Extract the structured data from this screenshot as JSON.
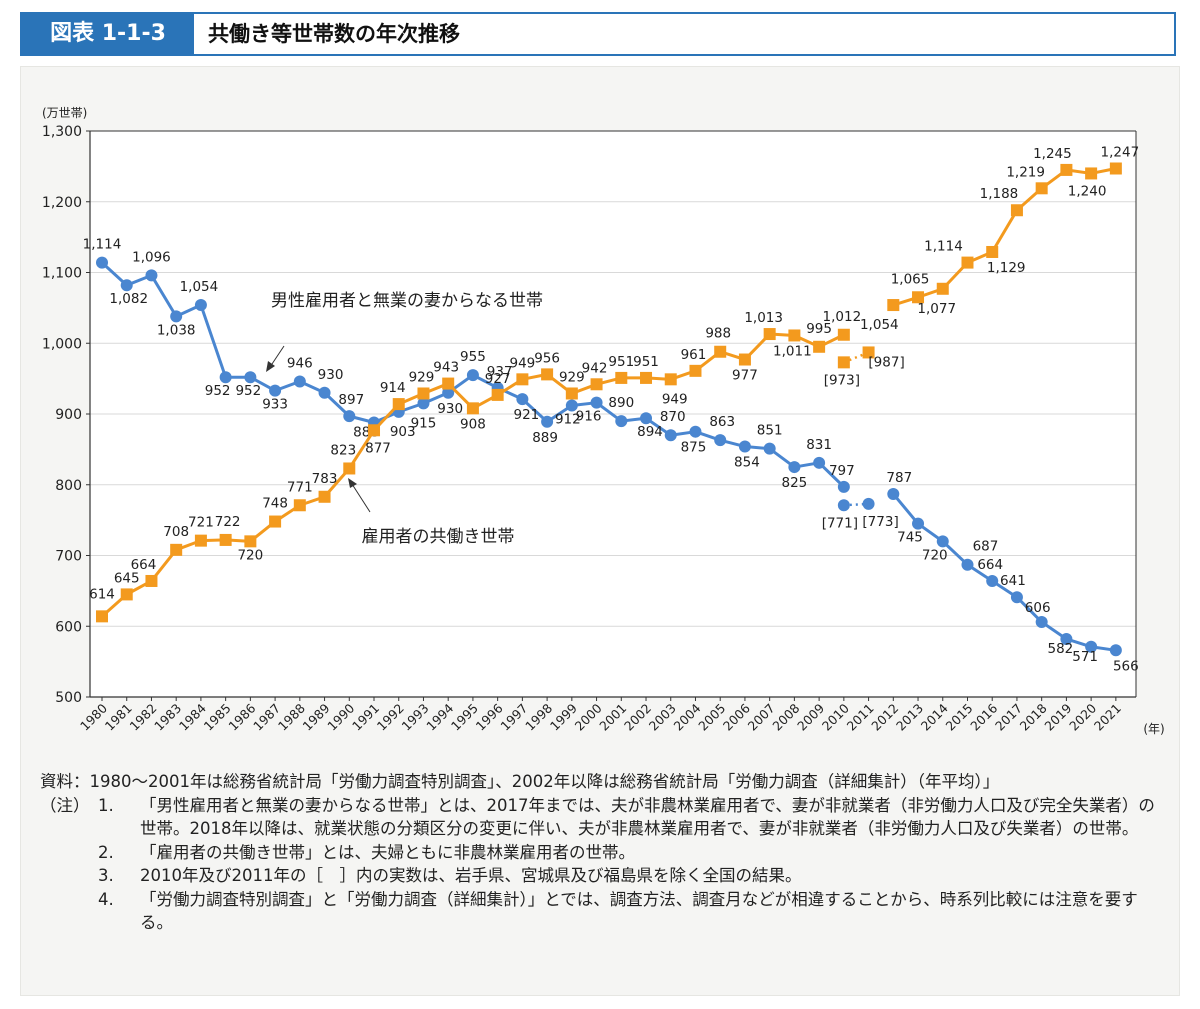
{
  "header": {
    "figure_label": "図表 1-1-3",
    "title": "共働き等世帯数の年次推移"
  },
  "chart_data": {
    "type": "line",
    "ylabel": "(万世帯)",
    "xlabel": "(年)",
    "ylim": [
      500,
      1300
    ],
    "yticks": [
      500,
      600,
      700,
      800,
      900,
      1000,
      1100,
      1200,
      1300
    ],
    "ytick_labels": [
      "500",
      "600",
      "700",
      "800",
      "900",
      "1,000",
      "1,100",
      "1,200",
      "1,300"
    ],
    "x": [
      1980,
      1981,
      1982,
      1983,
      1984,
      1985,
      1986,
      1987,
      1988,
      1989,
      1990,
      1991,
      1992,
      1993,
      1994,
      1995,
      1996,
      1997,
      1998,
      1999,
      2000,
      2001,
      2002,
      2003,
      2004,
      2005,
      2006,
      2007,
      2008,
      2009,
      2010,
      2011,
      2012,
      2013,
      2014,
      2015,
      2016,
      2017,
      2018,
      2019,
      2020,
      2021
    ],
    "series": [
      {
        "name": "男性雇用者と無業の妻からなる世帯",
        "color": "#4a86d0",
        "marker": "circle",
        "values": [
          1114,
          1082,
          1096,
          1038,
          1054,
          952,
          952,
          933,
          946,
          930,
          897,
          888,
          903,
          915,
          930,
          955,
          937,
          921,
          889,
          912,
          916,
          890,
          894,
          870,
          875,
          863,
          854,
          851,
          825,
          831,
          797,
          null,
          787,
          745,
          720,
          687,
          664,
          641,
          606,
          582,
          571,
          566
        ],
        "value_labels": [
          "1,114",
          "1,082",
          "1,096",
          "1,038",
          "1,054",
          "952",
          "952",
          "933",
          "946",
          "930",
          "897",
          "888",
          "903",
          "915",
          "930",
          "955",
          "937",
          "921",
          "889",
          "912",
          "916",
          "890",
          "894",
          "870",
          "875",
          "863",
          "854",
          "851",
          "825",
          "831",
          "797",
          "",
          "787",
          "745",
          "720",
          "687",
          "664",
          "641",
          "606",
          "582",
          "571",
          "566"
        ],
        "bracket_points": [
          {
            "x": 2010,
            "value": 771,
            "label": "[771]"
          },
          {
            "x": 2011,
            "value": 773,
            "label": "[773]"
          }
        ]
      },
      {
        "name": "雇用者の共働き世帯",
        "color": "#f39a1e",
        "marker": "square",
        "values": [
          614,
          645,
          664,
          708,
          721,
          722,
          720,
          748,
          771,
          783,
          823,
          877,
          914,
          929,
          943,
          908,
          927,
          949,
          956,
          929,
          942,
          951,
          951,
          949,
          961,
          988,
          977,
          1013,
          1011,
          995,
          1012,
          null,
          1054,
          1065,
          1077,
          1114,
          1129,
          1188,
          1219,
          1245,
          1240,
          1247
        ],
        "value_labels": [
          "614",
          "645",
          "664",
          "708",
          "721",
          "722",
          "720",
          "748",
          "771",
          "783",
          "823",
          "877",
          "914",
          "929",
          "943",
          "908",
          "927",
          "949",
          "956",
          "929",
          "942",
          "951",
          "951",
          "949",
          "961",
          "988",
          "977",
          "1,013",
          "1,011",
          "995",
          "1,012",
          "",
          "1,054",
          "1,065",
          "1,077",
          "1,114",
          "1,129",
          "1,188",
          "1,219",
          "1,245",
          "1,240",
          "1,247"
        ],
        "bracket_points": [
          {
            "x": 2010,
            "value": 973,
            "label": "[973]"
          },
          {
            "x": 2011,
            "value": 987,
            "label": "[987]"
          }
        ]
      }
    ]
  },
  "notes": {
    "source_tag": "資料：",
    "source_text": "1980〜2001年は総務省統計局「労働力調査特別調査」、2002年以降は総務省統計局「労働力調査（詳細集計）（年平均）」",
    "notes_tag": "（注）",
    "items": [
      {
        "num": "1.",
        "text": "「男性雇用者と無業の妻からなる世帯」とは、2017年までは、夫が非農林業雇用者で、妻が非就業者（非労働力人口及び完全失業者）の世帯。2018年以降は、就業状態の分類区分の変更に伴い、夫が非農林業雇用者で、妻が非就業者（非労働力人口及び失業者）の世帯。"
      },
      {
        "num": "2.",
        "text": "「雇用者の共働き世帯」とは、夫婦ともに非農林業雇用者の世帯。"
      },
      {
        "num": "3.",
        "text": "2010年及び2011年の［　］内の実数は、岩手県、宮城県及び福島県を除く全国の結果。"
      },
      {
        "num": "4.",
        "text": "「労働力調査特別調査」と「労働力調査（詳細集計）」とでは、調査方法、調査月などが相違することから、時系列比較には注意を要する。"
      }
    ]
  }
}
